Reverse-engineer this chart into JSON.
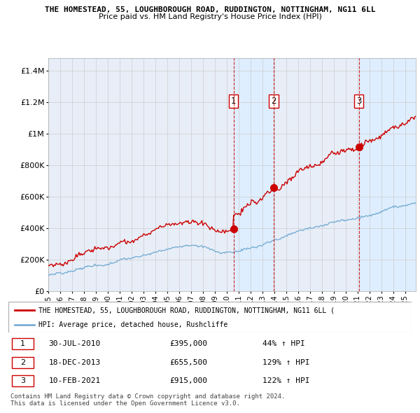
{
  "title_line1": "THE HOMESTEAD, 55, LOUGHBOROUGH ROAD, RUDDINGTON, NOTTINGHAM, NG11 6LL",
  "title_line2": "Price paid vs. HM Land Registry's House Price Index (HPI)",
  "ylabel_ticks": [
    "£0",
    "£200K",
    "£400K",
    "£600K",
    "£800K",
    "£1M",
    "£1.2M",
    "£1.4M"
  ],
  "ytick_values": [
    0,
    200000,
    400000,
    600000,
    800000,
    1000000,
    1200000,
    1400000
  ],
  "ylim": [
    0,
    1480000
  ],
  "x_start_year": 1995,
  "x_end_year": 2025,
  "sale_points": [
    {
      "year": 2010.58,
      "price": 395000,
      "label": "1"
    },
    {
      "year": 2013.96,
      "price": 655500,
      "label": "2"
    },
    {
      "year": 2021.12,
      "price": 915000,
      "label": "3"
    }
  ],
  "sale_info": [
    {
      "num": "1",
      "date": "30-JUL-2010",
      "price": "£395,000",
      "change": "44% ↑ HPI"
    },
    {
      "num": "2",
      "date": "18-DEC-2013",
      "price": "£655,500",
      "change": "129% ↑ HPI"
    },
    {
      "num": "3",
      "date": "10-FEB-2021",
      "price": "£915,000",
      "change": "122% ↑ HPI"
    }
  ],
  "legend_red_label": "THE HOMESTEAD, 55, LOUGHBOROUGH ROAD, RUDDINGTON, NOTTINGHAM, NG11 6LL (",
  "legend_blue_label": "HPI: Average price, detached house, Rushcliffe",
  "footer_line1": "Contains HM Land Registry data © Crown copyright and database right 2024.",
  "footer_line2": "This data is licensed under the Open Government Licence v3.0.",
  "red_color": "#cc0000",
  "blue_color": "#7aafd4",
  "shade_color": "#ddeeff",
  "dashed_color": "#cc0000",
  "grid_color": "#cccccc",
  "plot_bg": "#e8eef8",
  "fig_bg": "#ffffff"
}
